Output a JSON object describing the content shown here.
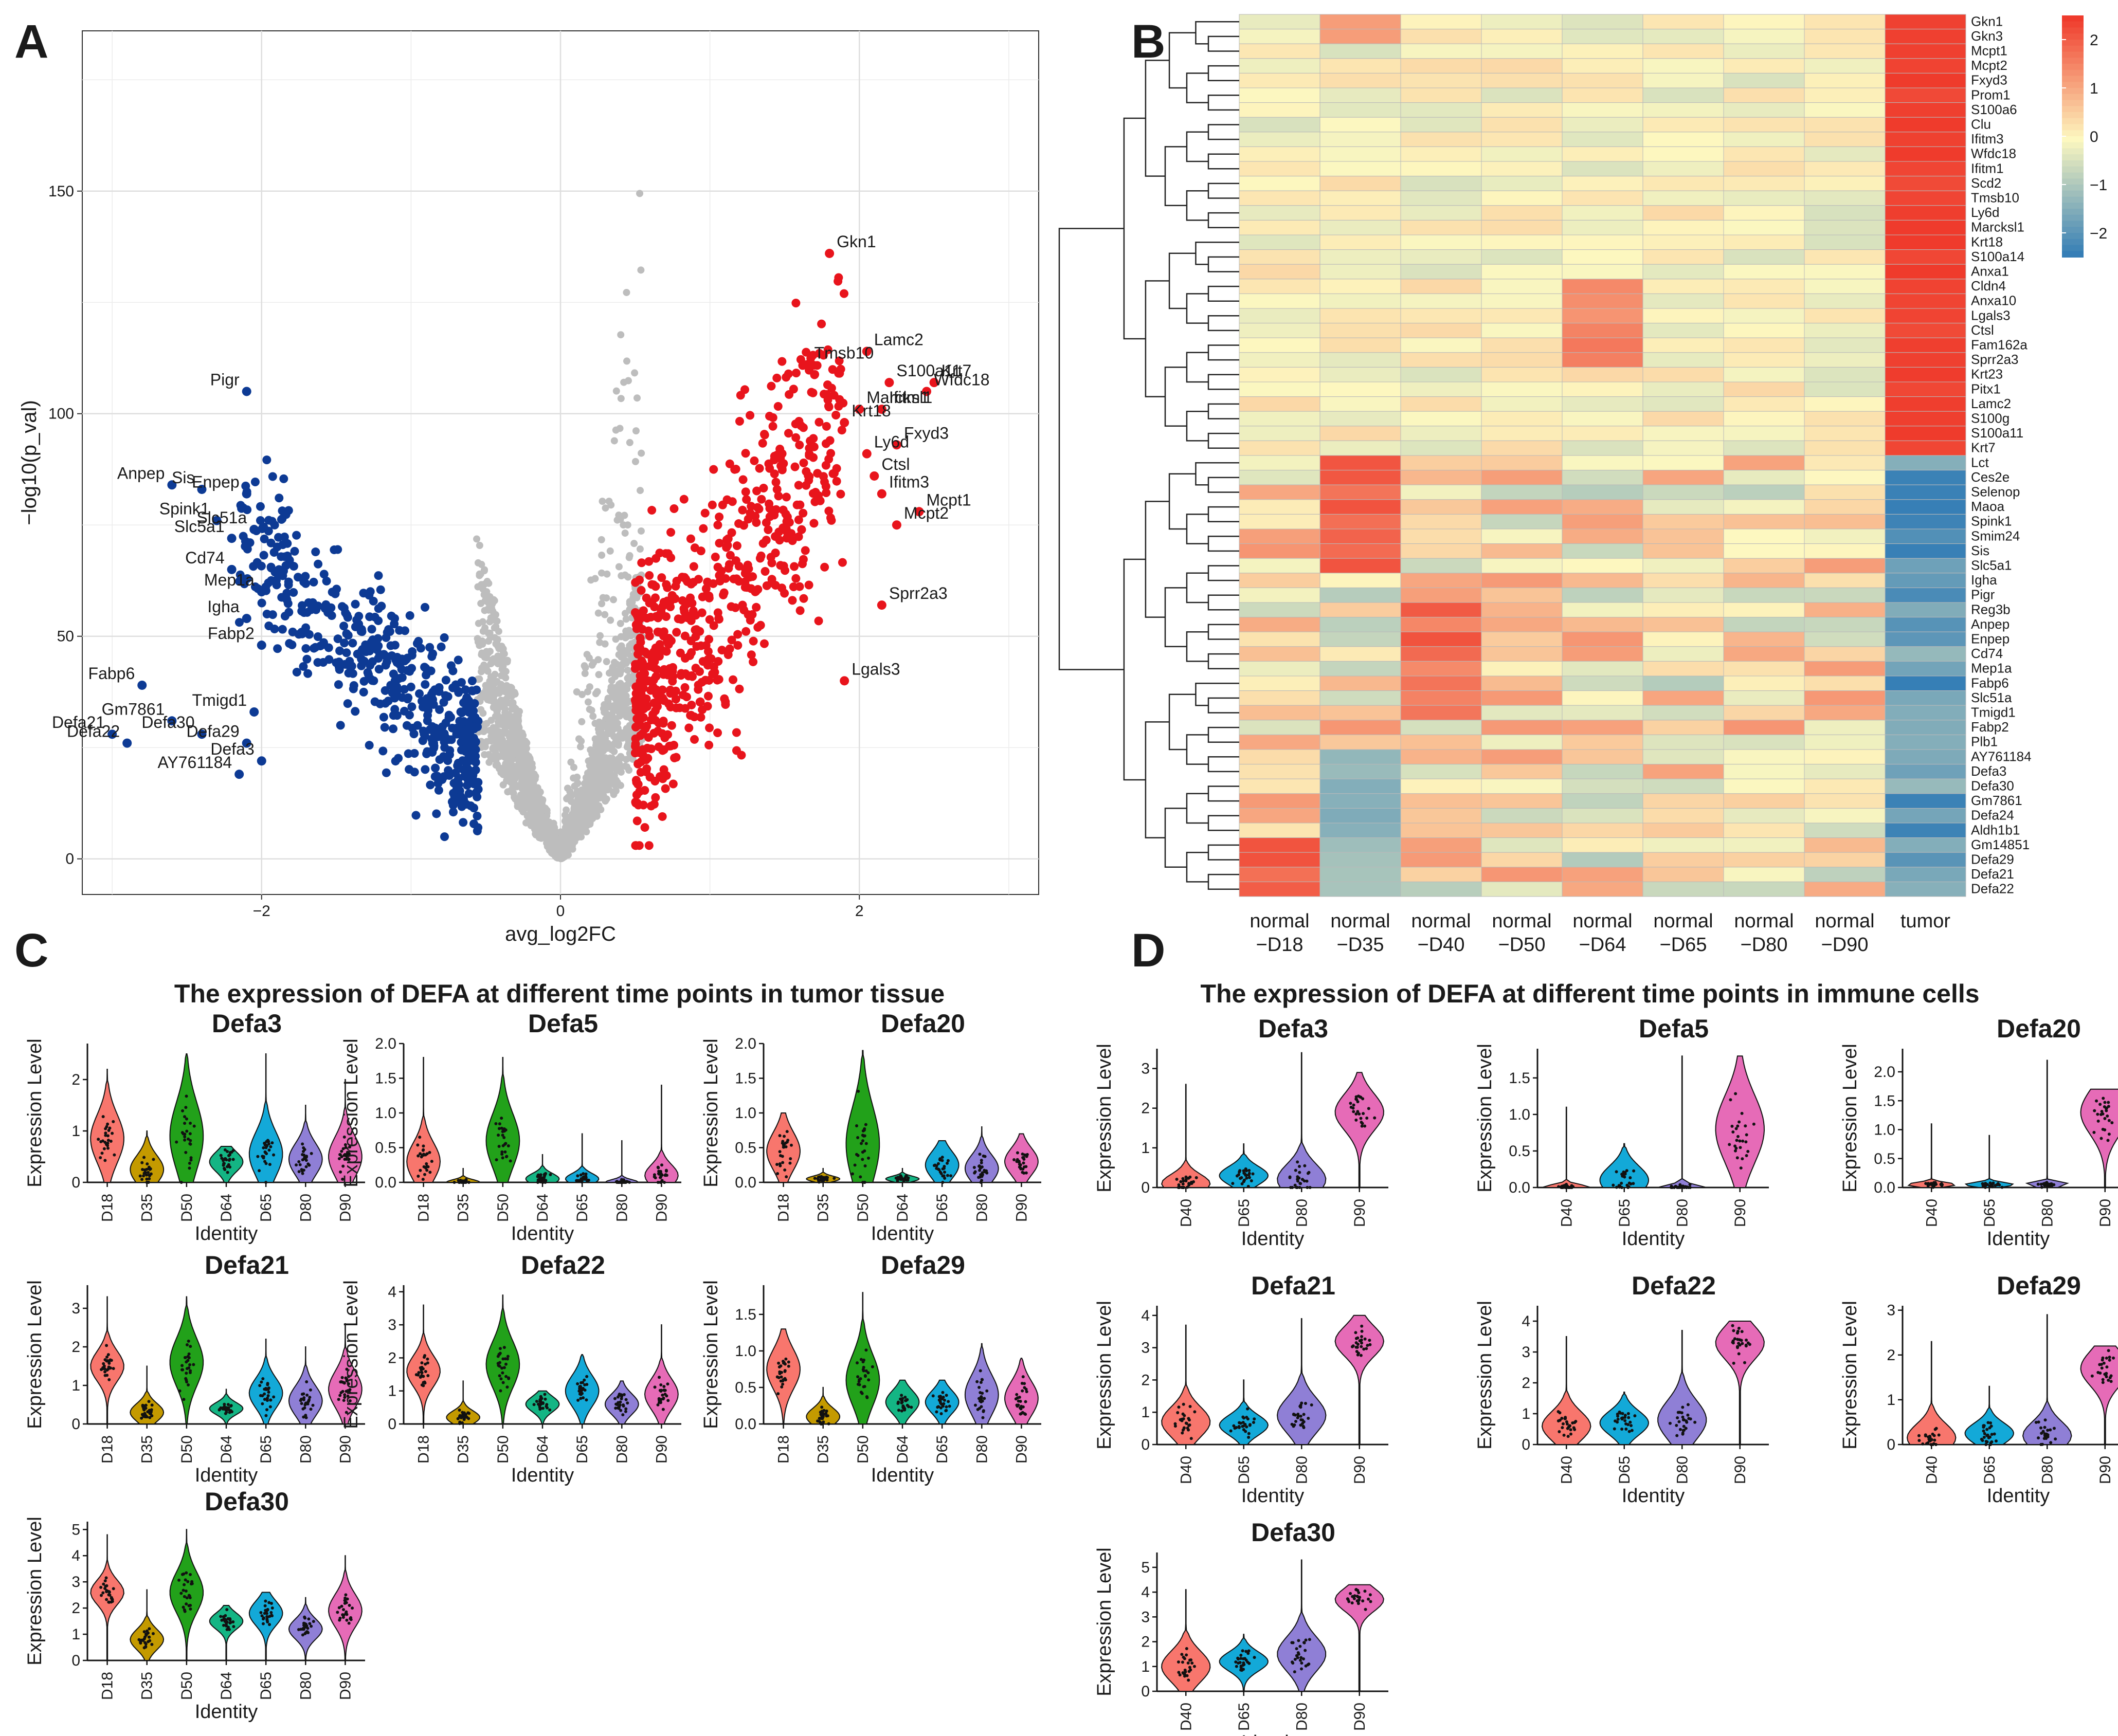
{
  "panels": {
    "a": "A",
    "b": "B",
    "c": "C",
    "d": "D"
  },
  "colors": {
    "up": "#e8141c",
    "down": "#0d3a94",
    "ns": "#bdbdbd",
    "hm_low": "#2b78b5",
    "hm_mid": "#fdf8c0",
    "hm_high": "#ef3b2c",
    "violin": {
      "D18": "#f8766d",
      "D35": "#c49a00",
      "D40": "#f8766d",
      "D50": "#22a11a",
      "D64": "#14b584",
      "D65": "#13a9d8",
      "D80": "#8f7fd6",
      "D90": "#e66bb7"
    }
  },
  "chart_data": [
    {
      "id": "volcano",
      "type": "scatter",
      "xlabel": "avg_log2FC",
      "ylabel": "−log10(p_val)",
      "xlim": [
        -3.2,
        3.2
      ],
      "ylim": [
        -8,
        186
      ],
      "xticks": [
        -2,
        0,
        2
      ],
      "yticks": [
        0,
        50,
        100,
        150
      ],
      "grid": true,
      "labels_down": [
        {
          "name": "Pigr",
          "x": -2.1,
          "y": 105
        },
        {
          "name": "Anpep",
          "x": -2.6,
          "y": 84
        },
        {
          "name": "Sis",
          "x": -2.4,
          "y": 83
        },
        {
          "name": "Enpep",
          "x": -2.1,
          "y": 82
        },
        {
          "name": "Spink1",
          "x": -2.3,
          "y": 76
        },
        {
          "name": "Slc51a",
          "x": -2.05,
          "y": 74
        },
        {
          "name": "Slc5a1",
          "x": -2.2,
          "y": 72
        },
        {
          "name": "Cd74",
          "x": -2.2,
          "y": 65
        },
        {
          "name": "Mep1a",
          "x": -2.0,
          "y": 60
        },
        {
          "name": "Igha",
          "x": -2.1,
          "y": 54
        },
        {
          "name": "Fabp2",
          "x": -2.0,
          "y": 48
        },
        {
          "name": "Fabp6",
          "x": -2.8,
          "y": 39
        },
        {
          "name": "Tmigd1",
          "x": -2.05,
          "y": 33
        },
        {
          "name": "Gm7861",
          "x": -2.6,
          "y": 31
        },
        {
          "name": "Defa21",
          "x": -3.0,
          "y": 28
        },
        {
          "name": "Defa30",
          "x": -2.4,
          "y": 28
        },
        {
          "name": "Defa29",
          "x": -2.1,
          "y": 26
        },
        {
          "name": "Defa22",
          "x": -2.9,
          "y": 26
        },
        {
          "name": "Defa3",
          "x": -2.0,
          "y": 22
        },
        {
          "name": "AY761184",
          "x": -2.15,
          "y": 19
        }
      ],
      "labels_up": [
        {
          "name": "Gkn1",
          "x": 1.8,
          "y": 136
        },
        {
          "name": "Lamc2",
          "x": 2.05,
          "y": 114
        },
        {
          "name": "Tmsb10",
          "x": 1.65,
          "y": 111
        },
        {
          "name": "S100a11",
          "x": 2.2,
          "y": 107
        },
        {
          "name": "Krt7",
          "x": 2.5,
          "y": 107
        },
        {
          "name": "Marcksl1",
          "x": 2.0,
          "y": 101
        },
        {
          "name": "Wfdc18",
          "x": 2.45,
          "y": 105
        },
        {
          "name": "Krt18",
          "x": 1.9,
          "y": 98
        },
        {
          "name": "Ifitm1",
          "x": 2.15,
          "y": 101
        },
        {
          "name": "Ly6d",
          "x": 2.05,
          "y": 91
        },
        {
          "name": "Fxyd3",
          "x": 2.25,
          "y": 93
        },
        {
          "name": "Ctsl",
          "x": 2.1,
          "y": 86
        },
        {
          "name": "Ifitm3",
          "x": 2.15,
          "y": 82
        },
        {
          "name": "Mcpt1",
          "x": 2.4,
          "y": 78
        },
        {
          "name": "Mcpt2",
          "x": 2.25,
          "y": 75
        },
        {
          "name": "Sprr2a3",
          "x": 2.15,
          "y": 57
        },
        {
          "name": "Lgals3",
          "x": 1.9,
          "y": 40
        }
      ]
    },
    {
      "id": "heatmap",
      "type": "heatmap",
      "columns": [
        "normal\n−D18",
        "normal\n−D35",
        "normal\n−D40",
        "normal\n−D50",
        "normal\n−D64",
        "normal\n−D65",
        "normal\n−D80",
        "normal\n−D90",
        "tumor"
      ],
      "column_top": [
        "normal",
        "normal",
        "normal",
        "normal",
        "normal",
        "normal",
        "normal",
        "normal",
        "tumor"
      ],
      "column_bottom": [
        "−D18",
        "−D35",
        "−D40",
        "−D50",
        "−D64",
        "−D65",
        "−D80",
        "−D90",
        ""
      ],
      "rows": [
        "Gkn1",
        "Gkn3",
        "Mcpt1",
        "Mcpt2",
        "Fxyd3",
        "Prom1",
        "S100a6",
        "Clu",
        "Ifitm3",
        "Wfdc18",
        "Ifitm1",
        "Scd2",
        "Tmsb10",
        "Ly6d",
        "Marcksl1",
        "Krt18",
        "S100a14",
        "Anxa1",
        "Cldn4",
        "Anxa10",
        "Lgals3",
        "Ctsl",
        "Fam162a",
        "Sprr2a3",
        "Krt23",
        "Pitx1",
        "Lamc2",
        "S100g",
        "S100a11",
        "Krt7",
        "Lct",
        "Ces2e",
        "Selenop",
        "Maoa",
        "Spink1",
        "Smim24",
        "Sis",
        "Slc5a1",
        "Igha",
        "Pigr",
        "Reg3b",
        "Anpep",
        "Enpep",
        "Cd74",
        "Mep1a",
        "Fabp6",
        "Slc51a",
        "Tmigd1",
        "Fabp2",
        "Plb1",
        "AY761184",
        "Defa3",
        "Defa30",
        "Gm7861",
        "Defa24",
        "Aldh1b1",
        "Gm14851",
        "Defa29",
        "Defa21",
        "Defa22"
      ],
      "colorbar_ticks": [
        2,
        1,
        0,
        -1,
        -2
      ],
      "colorbar_labels": [
        "2",
        "1",
        "0",
        "−1",
        "−2"
      ],
      "scale": [
        -2.5,
        2.5
      ]
    },
    {
      "id": "violins_tumor",
      "type": "violin",
      "title": "The expression of DEFA at different time points in tumor tissue",
      "xlabel": "Identity",
      "ylabel": "Expression Level",
      "groups": [
        "D18",
        "D35",
        "D50",
        "D64",
        "D65",
        "D80",
        "D90"
      ],
      "genes": [
        {
          "name": "Defa3",
          "ymax": 2.7,
          "yticks": [
            0,
            1,
            2
          ],
          "centers": [
            0.85,
            0.25,
            0.9,
            0.4,
            0.55,
            0.45,
            0.5
          ],
          "spread": [
            0.6,
            0.35,
            0.85,
            0.25,
            0.55,
            0.4,
            0.5
          ],
          "top": [
            2.2,
            1.0,
            2.5,
            0.7,
            2.5,
            1.5,
            2.0
          ]
        },
        {
          "name": "Defa5",
          "ymax": 2.0,
          "yticks": [
            0.0,
            0.5,
            1.0,
            1.5,
            2.0
          ],
          "centers": [
            0.3,
            0.0,
            0.6,
            0.05,
            0.05,
            0.0,
            0.1
          ],
          "spread": [
            0.35,
            0.05,
            0.5,
            0.1,
            0.1,
            0.05,
            0.2
          ],
          "top": [
            1.8,
            0.2,
            1.8,
            0.4,
            0.7,
            0.6,
            1.4
          ]
        },
        {
          "name": "Defa20",
          "ymax": 2.0,
          "yticks": [
            0.0,
            0.5,
            1.0,
            1.5,
            2.0
          ],
          "centers": [
            0.45,
            0.05,
            0.55,
            0.05,
            0.25,
            0.2,
            0.3
          ],
          "spread": [
            0.35,
            0.05,
            0.7,
            0.05,
            0.25,
            0.25,
            0.25
          ],
          "top": [
            1.0,
            0.2,
            1.9,
            0.2,
            0.6,
            0.8,
            0.7
          ]
        },
        {
          "name": "Defa21",
          "ymax": 3.6,
          "yticks": [
            0,
            1,
            2,
            3
          ],
          "centers": [
            1.5,
            0.3,
            1.6,
            0.4,
            0.8,
            0.6,
            0.9
          ],
          "spread": [
            0.5,
            0.3,
            0.8,
            0.2,
            0.5,
            0.5,
            0.6
          ],
          "top": [
            3.3,
            1.5,
            3.3,
            0.9,
            2.2,
            2.0,
            2.6
          ]
        },
        {
          "name": "Defa22",
          "ymax": 4.2,
          "yticks": [
            0,
            1,
            2,
            3,
            4
          ],
          "centers": [
            1.6,
            0.2,
            1.8,
            0.6,
            1.0,
            0.6,
            0.9
          ],
          "spread": [
            0.6,
            0.25,
            0.9,
            0.3,
            0.6,
            0.4,
            0.6
          ],
          "top": [
            3.6,
            1.3,
            3.9,
            1.0,
            2.1,
            1.3,
            3.0
          ]
        },
        {
          "name": "Defa29",
          "ymax": 1.9,
          "yticks": [
            0.0,
            0.5,
            1.0,
            1.5
          ],
          "centers": [
            0.75,
            0.1,
            0.6,
            0.3,
            0.3,
            0.4,
            0.35
          ],
          "spread": [
            0.35,
            0.15,
            0.45,
            0.2,
            0.2,
            0.35,
            0.3
          ],
          "top": [
            1.3,
            0.5,
            1.8,
            0.6,
            0.6,
            1.1,
            0.9
          ]
        },
        {
          "name": "Defa30",
          "ymax": 5.3,
          "yticks": [
            0,
            1,
            2,
            3,
            4,
            5
          ],
          "centers": [
            2.6,
            0.8,
            2.6,
            1.5,
            1.8,
            1.2,
            1.9
          ],
          "spread": [
            0.6,
            0.5,
            1.0,
            0.4,
            0.6,
            0.5,
            0.8
          ],
          "top": [
            4.8,
            2.7,
            5.0,
            2.1,
            2.6,
            2.4,
            4.0
          ]
        }
      ]
    },
    {
      "id": "violins_immune",
      "type": "violin",
      "title": "The expression of DEFA at different time points in immune cells",
      "xlabel": "Identity",
      "ylabel": "Expression Level",
      "groups": [
        "D40",
        "D65",
        "D80",
        "D90"
      ],
      "genes": [
        {
          "name": "Defa3",
          "ymax": 3.5,
          "yticks": [
            0,
            1,
            2,
            3
          ],
          "centers": [
            0.1,
            0.3,
            0.2,
            1.9
          ],
          "spread": [
            0.3,
            0.3,
            0.5,
            0.6
          ],
          "top": [
            2.6,
            1.1,
            3.4,
            2.9
          ]
        },
        {
          "name": "Defa5",
          "ymax": 1.9,
          "yticks": [
            0.0,
            0.5,
            1.0,
            1.5
          ],
          "centers": [
            0.0,
            0.1,
            0.0,
            0.8
          ],
          "spread": [
            0.05,
            0.25,
            0.05,
            0.6
          ],
          "top": [
            1.1,
            0.6,
            1.8,
            1.8
          ]
        },
        {
          "name": "Defa20",
          "ymax": 2.4,
          "yticks": [
            0.0,
            0.5,
            1.0,
            1.5,
            2.0
          ],
          "centers": [
            0.05,
            0.05,
            0.05,
            1.3
          ],
          "spread": [
            0.05,
            0.05,
            0.05,
            0.5
          ],
          "top": [
            1.1,
            0.9,
            2.2,
            1.7
          ]
        },
        {
          "name": "Defa21",
          "ymax": 4.3,
          "yticks": [
            0,
            1,
            2,
            3,
            4
          ],
          "centers": [
            0.7,
            0.6,
            0.9,
            3.2
          ],
          "spread": [
            0.6,
            0.4,
            0.7,
            0.6
          ],
          "top": [
            3.7,
            2.0,
            3.9,
            4.0
          ]
        },
        {
          "name": "Defa22",
          "ymax": 4.5,
          "yticks": [
            0,
            1,
            2,
            3,
            4
          ],
          "centers": [
            0.6,
            0.7,
            0.8,
            3.3
          ],
          "spread": [
            0.6,
            0.5,
            0.8,
            0.7
          ],
          "top": [
            3.5,
            1.7,
            3.7,
            4.0
          ]
        },
        {
          "name": "Defa29",
          "ymax": 3.1,
          "yticks": [
            0,
            1,
            2,
            3
          ],
          "centers": [
            0.15,
            0.25,
            0.2,
            1.7
          ],
          "spread": [
            0.4,
            0.3,
            0.4,
            0.5
          ],
          "top": [
            2.3,
            1.3,
            2.9,
            2.2
          ]
        },
        {
          "name": "Defa30",
          "ymax": 5.6,
          "yticks": [
            0,
            1,
            2,
            3,
            4,
            5
          ],
          "centers": [
            1.0,
            1.2,
            1.5,
            3.7
          ],
          "spread": [
            0.8,
            0.5,
            0.9,
            0.6
          ],
          "top": [
            4.1,
            2.3,
            5.3,
            4.3
          ]
        }
      ]
    }
  ]
}
